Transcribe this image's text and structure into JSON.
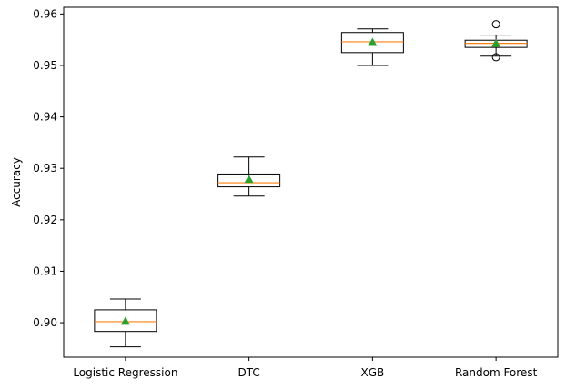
{
  "chart_data": {
    "type": "box",
    "title": "",
    "xlabel": "",
    "ylabel": "Accuracy",
    "ylim": [
      0.8933,
      0.9613
    ],
    "yticks": [
      "0.90",
      "0.91",
      "0.92",
      "0.93",
      "0.94",
      "0.95",
      "0.96"
    ],
    "categories": [
      "Logistic Regression",
      "DTC",
      "XGB",
      "Random Forest"
    ],
    "grid": false,
    "legend": "none",
    "boxes": [
      {
        "category": "Logistic Regression",
        "whisker_low": 0.8953,
        "q1": 0.8983,
        "median": 0.9002,
        "q3": 0.9025,
        "whisker_high": 0.9046,
        "mean": 0.9003,
        "outliers": []
      },
      {
        "category": "DTC",
        "whisker_low": 0.9246,
        "q1": 0.9264,
        "median": 0.9272,
        "q3": 0.9289,
        "whisker_high": 0.9322,
        "mean": 0.9279,
        "outliers": []
      },
      {
        "category": "XGB",
        "whisker_low": 0.95,
        "q1": 0.9525,
        "median": 0.9546,
        "q3": 0.9564,
        "whisker_high": 0.9571,
        "mean": 0.9545,
        "outliers": []
      },
      {
        "category": "Random Forest",
        "whisker_low": 0.9518,
        "q1": 0.9535,
        "median": 0.9543,
        "q3": 0.9549,
        "whisker_high": 0.9559,
        "mean": 0.9543,
        "outliers": [
          0.958,
          0.9516
        ]
      }
    ],
    "colors": {
      "box": "#000000",
      "median": "#ff7f0e",
      "mean": "#2ca02c"
    }
  }
}
